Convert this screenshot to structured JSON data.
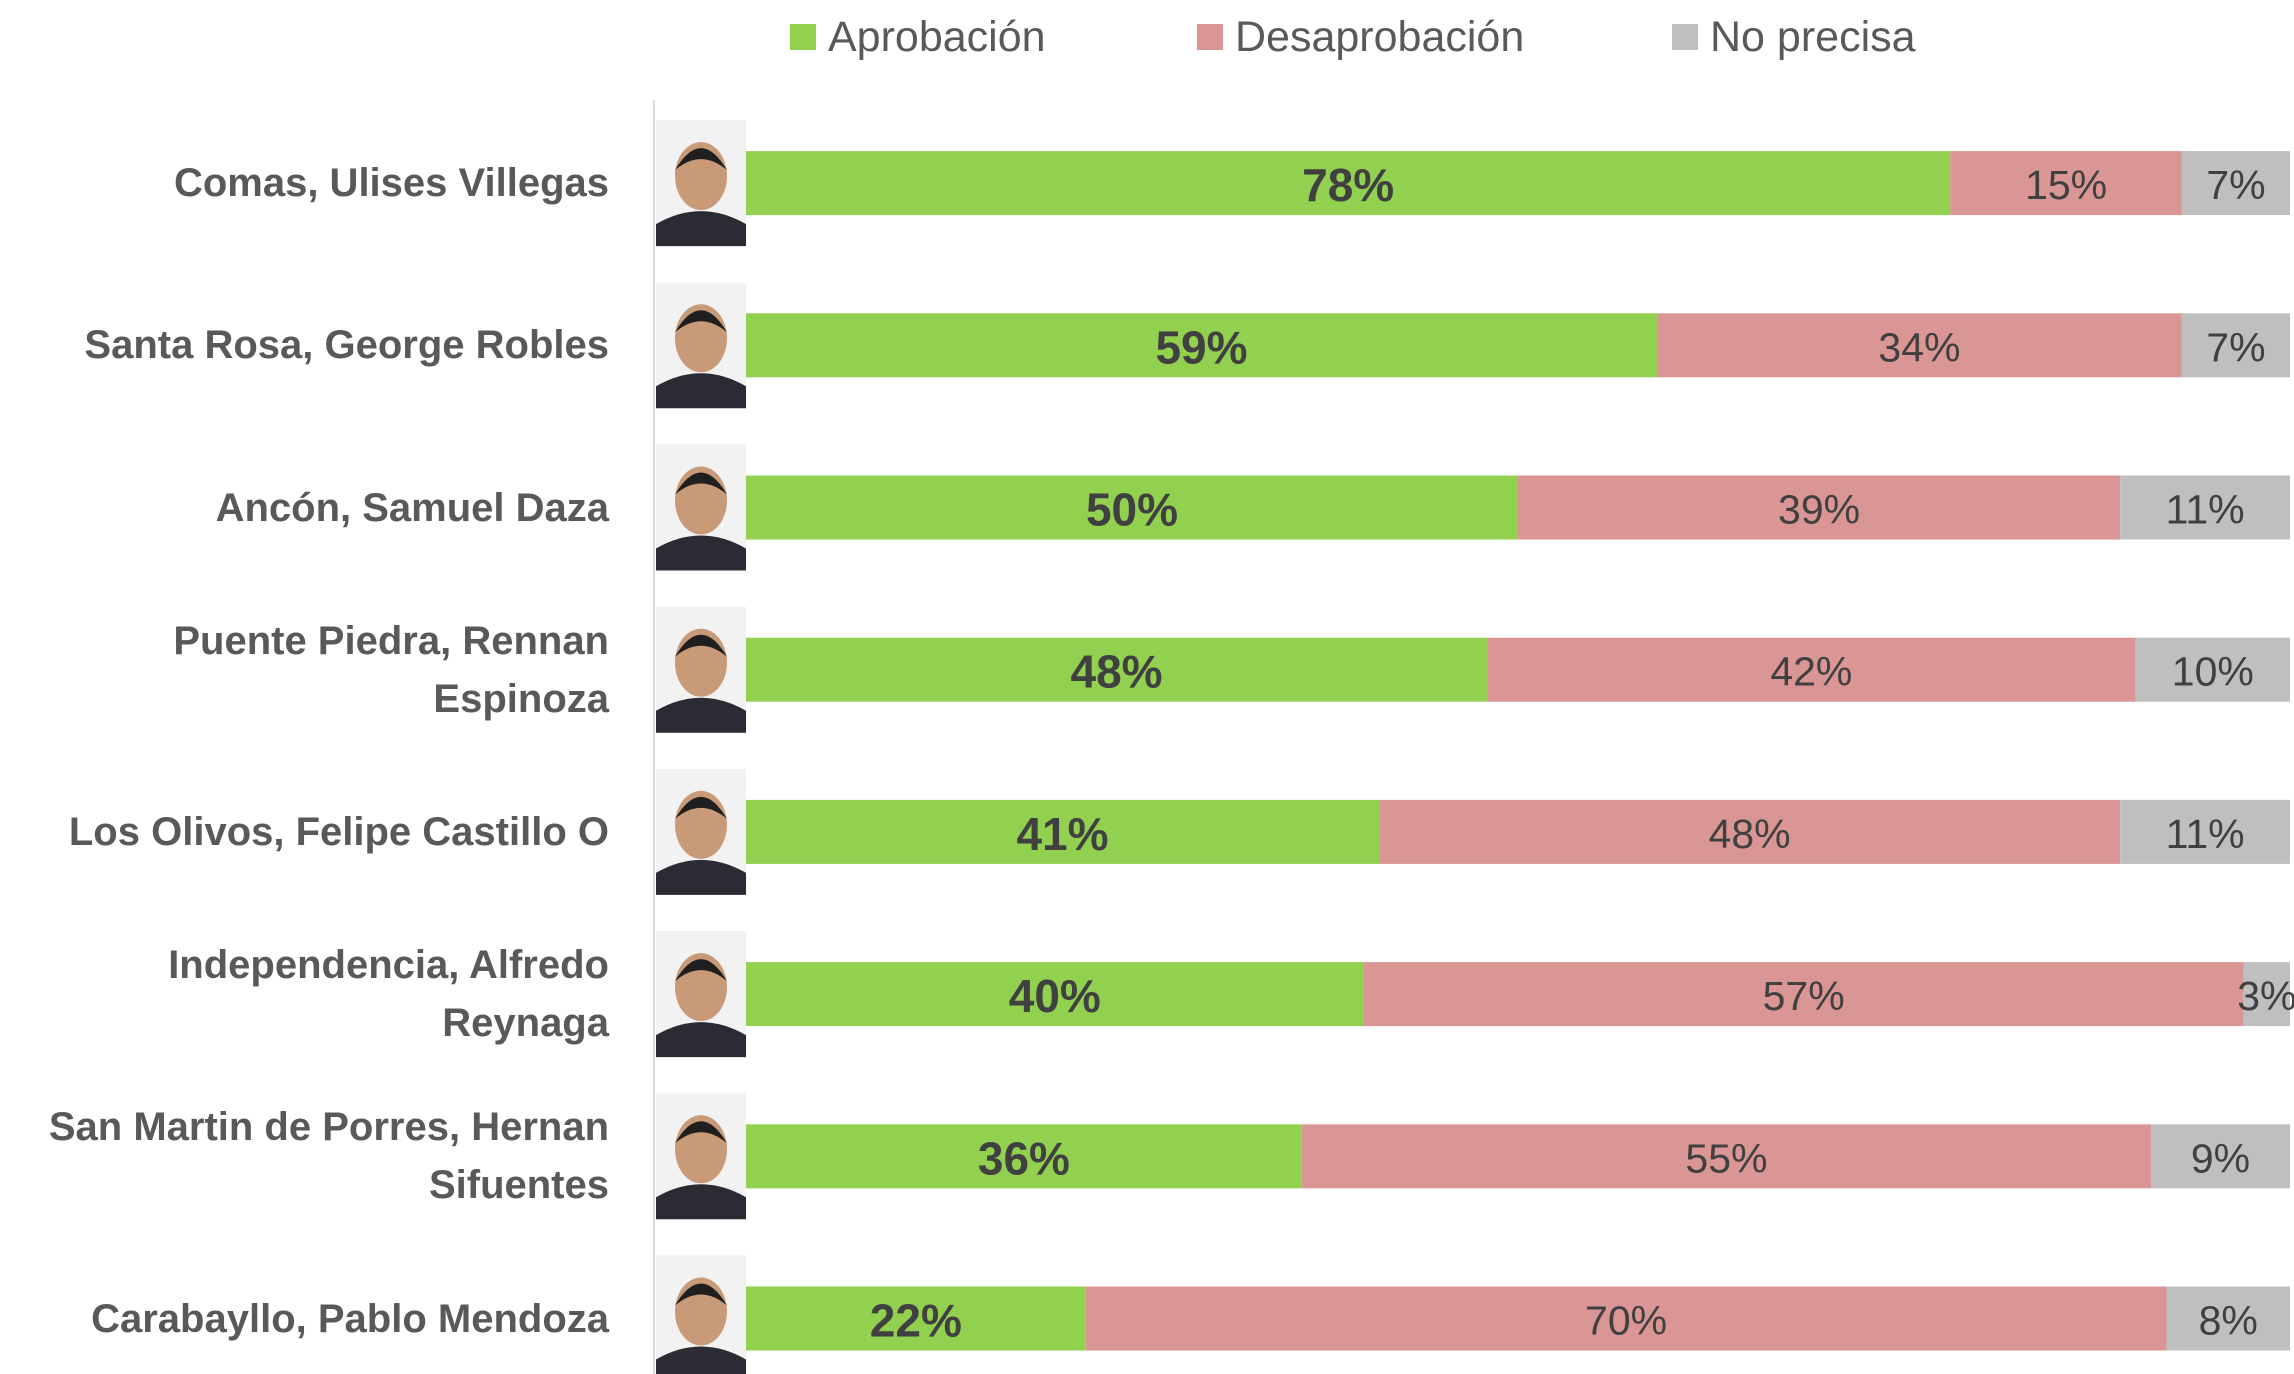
{
  "chart_data": {
    "type": "stacked-bar-horizontal",
    "categories": [
      "Comas, Ulises Villegas",
      "Santa Rosa, George Robles",
      "Ancón, Samuel Daza",
      "Puente Piedra, Rennan Espinoza",
      "Los Olivos, Felipe Castillo O",
      "Independencia, Alfredo Reynaga",
      "San Martin de Porres, Hernan Sifuentes",
      "Carabayllo, Pablo Mendoza"
    ],
    "series": [
      {
        "name": "Aprobación",
        "color": "#92d050",
        "values": [
          78,
          59,
          50,
          48,
          41,
          40,
          36,
          22
        ],
        "value_labels": [
          "78%",
          "59%",
          "50%",
          "48%",
          "41%",
          "40%",
          "36%",
          "22%"
        ]
      },
      {
        "name": "Desaprobación",
        "color": "#da9694",
        "values": [
          15,
          34,
          39,
          42,
          48,
          57,
          55,
          70
        ],
        "value_labels": [
          "15%",
          "34%",
          "39%",
          "42%",
          "48%",
          "57%",
          "55%",
          "70%"
        ]
      },
      {
        "name": "No precisa",
        "color": "#bfbfbf",
        "values": [
          7,
          7,
          11,
          10,
          11,
          3,
          9,
          8
        ],
        "value_labels": [
          "7%",
          "7%",
          "11%",
          "10%",
          "11%",
          "3%",
          "9%",
          "8%"
        ]
      }
    ],
    "legend": "top"
  }
}
